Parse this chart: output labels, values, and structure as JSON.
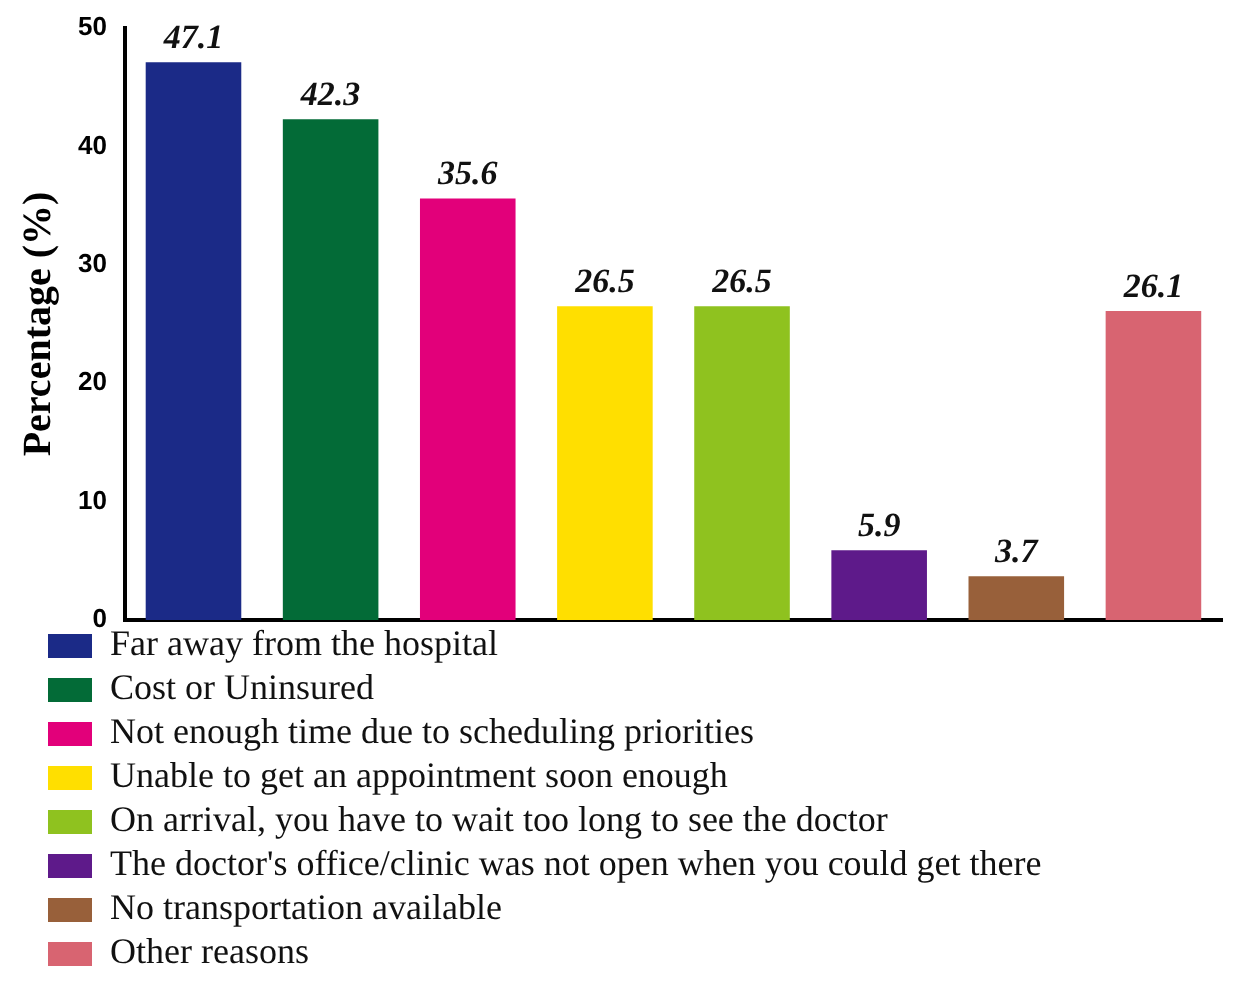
{
  "chart_data": {
    "type": "bar",
    "ylabel": "Percentage (%)",
    "categories": [
      null,
      null,
      null,
      null,
      null,
      null,
      null,
      null
    ],
    "series": [
      {
        "name": "Far away from the hospital",
        "color": "#1b2a87",
        "values": [
          47.1,
          null,
          null,
          null,
          null,
          null,
          null,
          null
        ]
      },
      {
        "name": "Cost or Uninsured",
        "color": "#036b37",
        "values": [
          null,
          42.3,
          null,
          null,
          null,
          null,
          null,
          null
        ]
      },
      {
        "name": "Not enough time due to scheduling priorities",
        "color": "#e2007a",
        "values": [
          null,
          null,
          35.6,
          null,
          null,
          null,
          null,
          null
        ]
      },
      {
        "name": "Unable to get an appointment soon enough",
        "color": "#ffdf00",
        "values": [
          null,
          null,
          null,
          26.5,
          null,
          null,
          null,
          null
        ]
      },
      {
        "name": "On arrival, you have to wait too long to see the doctor",
        "color": "#8fc21f",
        "values": [
          null,
          null,
          null,
          null,
          26.5,
          null,
          null,
          null
        ]
      },
      {
        "name": "The doctor's office/clinic was not open when you could get there",
        "color": "#5e1a8a",
        "values": [
          null,
          null,
          null,
          null,
          null,
          5.9,
          null,
          null
        ]
      },
      {
        "name": "No transportation available",
        "color": "#98603a",
        "values": [
          null,
          null,
          null,
          null,
          null,
          null,
          3.7,
          null
        ]
      },
      {
        "name": "Other reasons",
        "color": "#d86471",
        "values": [
          null,
          null,
          null,
          null,
          null,
          null,
          null,
          26.1
        ]
      }
    ],
    "ylim": [
      0,
      50
    ],
    "yticks": [
      0,
      10,
      20,
      30,
      40,
      50
    ],
    "grid": false,
    "legend": "bottom",
    "tick_labels": "y",
    "data_labels": true
  }
}
